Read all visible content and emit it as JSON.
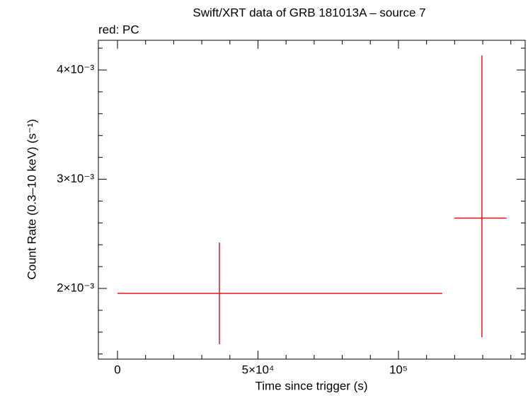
{
  "chart_data": {
    "type": "errorbar",
    "title": "Swift/XRT data of GRB 181013A – source 7",
    "subtitle": "red: PC",
    "x_label": "Time since trigger (s)",
    "y_label": "Count Rate (0.3–10 keV) (s⁻¹)",
    "series": [
      {
        "color": "#e8141c",
        "x": [
          36270,
          129700
        ],
        "xerr_minus": [
          36270,
          9800
        ],
        "xerr_plus": [
          79330,
          8800
        ],
        "values": [
          0.001955,
          0.002644
        ],
        "yerr_minus": [
          0.000465,
          0.00109
        ],
        "yerr_plus": [
          0.000465,
          0.00149
        ]
      }
    ],
    "xlim": [
      -6800,
      145100
    ],
    "ylim": [
      0.001353,
      0.004272
    ],
    "xticks": [
      0,
      {
        "value": 50000,
        "label": "5×10⁴"
      },
      {
        "value": 100000,
        "label": "10⁵"
      }
    ],
    "yticks": [
      {
        "value": 0.002,
        "label": "2×10⁻³"
      },
      {
        "value": 0.003,
        "label": "3×10⁻³"
      },
      {
        "value": 0.004,
        "label": "4×10⁻³"
      }
    ],
    "xminorticks": [
      10000,
      20000,
      30000,
      40000,
      60000,
      70000,
      80000,
      90000,
      110000,
      120000,
      130000,
      140000
    ],
    "yminorticks": [
      0.0014,
      0.0016,
      0.0018,
      0.0022,
      0.0024,
      0.0026,
      0.0028,
      0.0032,
      0.0034,
      0.0036,
      0.0038,
      0.0042
    ]
  }
}
